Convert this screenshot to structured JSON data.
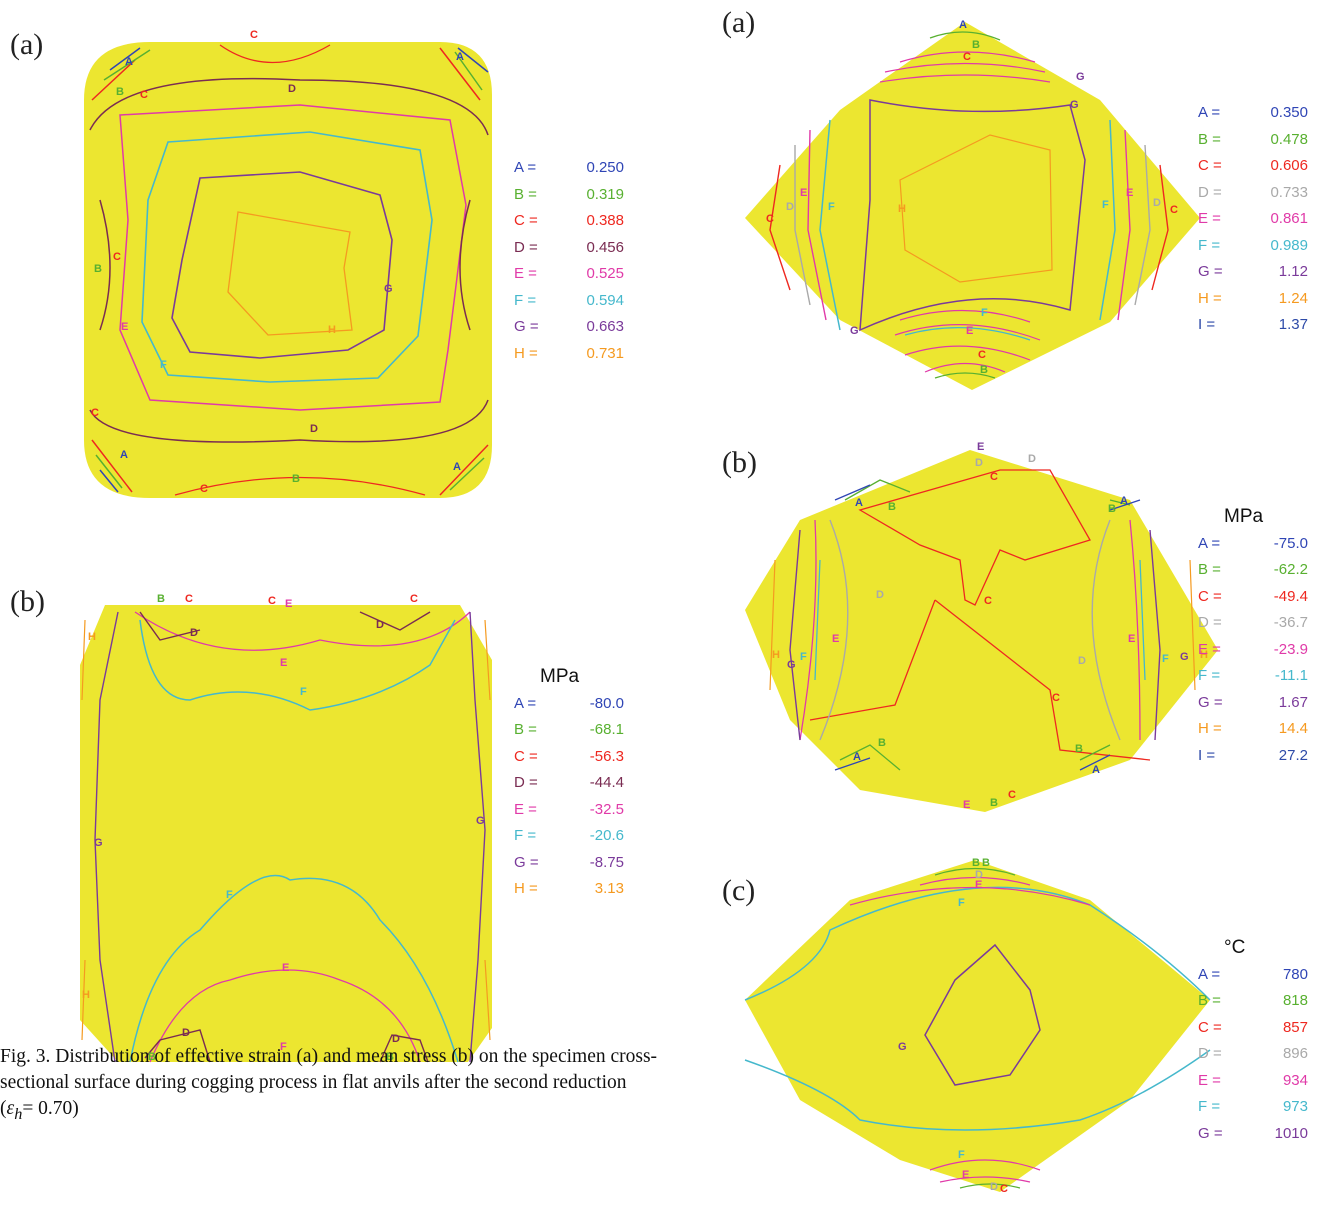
{
  "colors": {
    "fill": "#ece630",
    "A": "#2f45b5",
    "B": "#58b030",
    "C": "#ee2820",
    "D": "#7a2c52",
    "E": "#e03aa8",
    "F": "#45b8cc",
    "G": "#7a3a9a",
    "H": "#f59a20",
    "I": "#2d4aa8",
    "D_gray": "#a9a9a9"
  },
  "left_panel_a": {
    "label": "(a)",
    "legend": [
      {
        "key": "A =",
        "value": "0.250",
        "color": "#2f45b5"
      },
      {
        "key": "B =",
        "value": "0.319",
        "color": "#58b030"
      },
      {
        "key": "C =",
        "value": "0.388",
        "color": "#ee2820"
      },
      {
        "key": "D =",
        "value": "0.456",
        "color": "#7a2c52"
      },
      {
        "key": "E =",
        "value": "0.525",
        "color": "#e03aa8"
      },
      {
        "key": "F =",
        "value": "0.594",
        "color": "#45b8cc"
      },
      {
        "key": "G =",
        "value": "0.663",
        "color": "#7a3a9a"
      },
      {
        "key": "H =",
        "value": "0.731",
        "color": "#f59a20"
      }
    ]
  },
  "left_panel_b": {
    "label": "(b)",
    "unit": "MPa",
    "legend": [
      {
        "key": "A =",
        "value": "-80.0",
        "color": "#2f45b5"
      },
      {
        "key": "B =",
        "value": "-68.1",
        "color": "#58b030"
      },
      {
        "key": "C =",
        "value": "-56.3",
        "color": "#ee2820"
      },
      {
        "key": "D =",
        "value": "-44.4",
        "color": "#7a2c52"
      },
      {
        "key": "E =",
        "value": "-32.5",
        "color": "#e03aa8"
      },
      {
        "key": "F =",
        "value": "-20.6",
        "color": "#45b8cc"
      },
      {
        "key": "G =",
        "value": "-8.75",
        "color": "#7a3a9a"
      },
      {
        "key": "H =",
        "value": "3.13",
        "color": "#f59a20"
      }
    ]
  },
  "right_panel_a": {
    "label": "(a)",
    "legend": [
      {
        "key": "A =",
        "value": "0.350",
        "color": "#2f45b5"
      },
      {
        "key": "B =",
        "value": "0.478",
        "color": "#58b030"
      },
      {
        "key": "C =",
        "value": "0.606",
        "color": "#ee2820"
      },
      {
        "key": "D =",
        "value": "0.733",
        "color": "#a9a9a9"
      },
      {
        "key": "E =",
        "value": "0.861",
        "color": "#e03aa8"
      },
      {
        "key": "F =",
        "value": "0.989",
        "color": "#45b8cc"
      },
      {
        "key": "G =",
        "value": "1.12",
        "color": "#7a3a9a"
      },
      {
        "key": "H =",
        "value": "1.24",
        "color": "#f59a20"
      },
      {
        "key": "I =",
        "value": "1.37",
        "color": "#2d4aa8"
      }
    ]
  },
  "right_panel_b": {
    "label": "(b)",
    "unit": "MPa",
    "legend": [
      {
        "key": "A =",
        "value": "-75.0",
        "color": "#2f45b5"
      },
      {
        "key": "B =",
        "value": "-62.2",
        "color": "#58b030"
      },
      {
        "key": "C =",
        "value": "-49.4",
        "color": "#ee2820"
      },
      {
        "key": "D =",
        "value": "-36.7",
        "color": "#a9a9a9"
      },
      {
        "key": "E =",
        "value": "-23.9",
        "color": "#e03aa8"
      },
      {
        "key": "F =",
        "value": "-11.1",
        "color": "#45b8cc"
      },
      {
        "key": "G =",
        "value": "1.67",
        "color": "#7a3a9a"
      },
      {
        "key": "H =",
        "value": "14.4",
        "color": "#f59a20"
      },
      {
        "key": "I =",
        "value": "27.2",
        "color": "#2d4aa8"
      }
    ]
  },
  "right_panel_c": {
    "label": "(c)",
    "unit": "°C",
    "legend": [
      {
        "key": "A =",
        "value": "780",
        "color": "#2f45b5"
      },
      {
        "key": "B =",
        "value": "818",
        "color": "#58b030"
      },
      {
        "key": "C =",
        "value": "857",
        "color": "#ee2820"
      },
      {
        "key": "D =",
        "value": "896",
        "color": "#a9a9a9"
      },
      {
        "key": "E =",
        "value": "934",
        "color": "#e03aa8"
      },
      {
        "key": "F =",
        "value": "973",
        "color": "#45b8cc"
      },
      {
        "key": "G =",
        "value": "1010",
        "color": "#7a3a9a"
      }
    ]
  },
  "caption": {
    "prefix": "Fig. 3. Distribution of effective strain (a) and mean stress (b) on the specimen cross-sectional surface during cogging process in flat anvils after the second reduction (",
    "symbol": "ε",
    "subscript": "h",
    "suffix": "= 0.70)"
  }
}
